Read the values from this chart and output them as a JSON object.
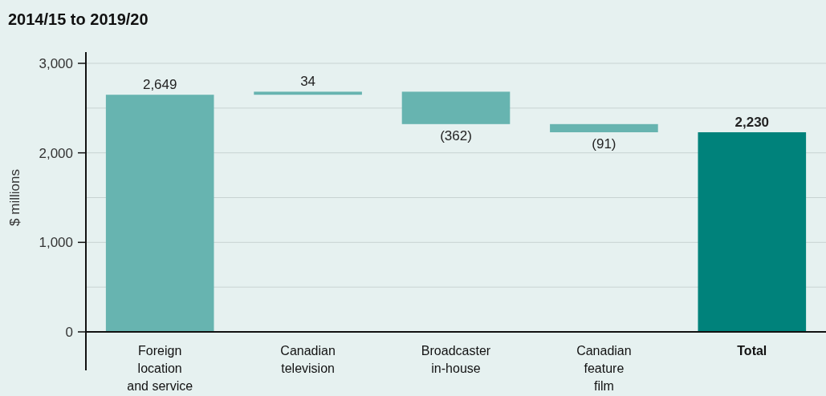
{
  "chart_data": {
    "type": "bar",
    "title": "2014/15 to 2019/20",
    "ylabel": "$ millions",
    "categories": [
      "Foreign location and service",
      "Canadian television",
      "Broadcaster in-house",
      "Canadian feature film",
      "Total"
    ],
    "values": [
      2649,
      34,
      -362,
      -91,
      2230
    ],
    "base": [
      0,
      2649,
      2683,
      2321,
      0
    ],
    "colors": [
      "#67b4b0",
      "#67b4b0",
      "#67b4b0",
      "#67b4b0",
      "#00827b"
    ],
    "value_labels": [
      "2,649",
      "34",
      "(362)",
      "(91)",
      "2,230"
    ],
    "ylim": [
      0,
      3000
    ],
    "yticks": [
      0,
      {
        "value": 500,
        "label": null
      },
      {
        "value": 1000,
        "label": "1,000"
      },
      {
        "value": 1500,
        "label": null
      },
      {
        "value": 2000,
        "label": "2,000"
      },
      {
        "value": 2500,
        "label": null
      },
      {
        "value": 3000,
        "label": "3,000"
      }
    ],
    "grid": "y"
  }
}
